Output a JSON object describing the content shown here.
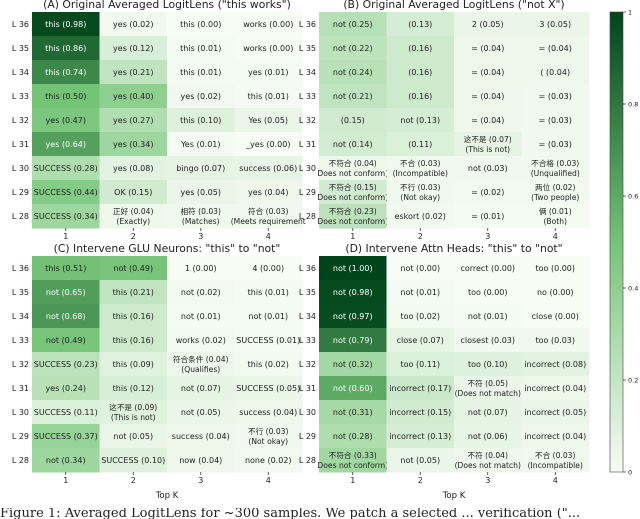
{
  "colormap": {
    "low": "#f7fcf5",
    "mid": "#74c476",
    "high": "#00441b",
    "ticks": [
      "0",
      "0.2",
      "0.4",
      "0.6",
      "0.8",
      "1"
    ],
    "range": [
      0,
      1
    ]
  },
  "caption_fragment": "Figure 1: Averaged LogitLens for ~300 samples. We patch a selected ... verification (\"...",
  "chart_data": [
    {
      "type": "heatmap",
      "title": "(A) Original Averaged LogitLens (\"this works\")",
      "xlabel": "",
      "ylabel": "",
      "x_categories": [
        "1",
        "2",
        "3",
        "4"
      ],
      "y_categories": [
        "L 36",
        "L 35",
        "L 34",
        "L 33",
        "L 32",
        "L 31",
        "L 30",
        "L 29",
        "L 28"
      ],
      "cells": [
        [
          {
            "t": [
              "this  (0.98)"
            ],
            "v": 0.98
          },
          {
            "t": [
              "yes  (0.02)"
            ],
            "v": 0.02
          },
          {
            "t": [
              "this  (0.00)"
            ],
            "v": 0.0
          },
          {
            "t": [
              "works  (0.00)"
            ],
            "v": 0.0
          }
        ],
        [
          {
            "t": [
              "this  (0.86)"
            ],
            "v": 0.86
          },
          {
            "t": [
              "yes  (0.12)"
            ],
            "v": 0.12
          },
          {
            "t": [
              "this  (0.01)"
            ],
            "v": 0.01
          },
          {
            "t": [
              "works  (0.00)"
            ],
            "v": 0.0
          }
        ],
        [
          {
            "t": [
              "this  (0.74)"
            ],
            "v": 0.74
          },
          {
            "t": [
              "yes  (0.21)"
            ],
            "v": 0.21
          },
          {
            "t": [
              "this  (0.01)"
            ],
            "v": 0.01
          },
          {
            "t": [
              "yes  (0.01)"
            ],
            "v": 0.01
          }
        ],
        [
          {
            "t": [
              "this  (0.50)"
            ],
            "v": 0.5
          },
          {
            "t": [
              "yes  (0.40)"
            ],
            "v": 0.4
          },
          {
            "t": [
              "yes  (0.02)"
            ],
            "v": 0.02
          },
          {
            "t": [
              "this  (0.01)"
            ],
            "v": 0.01
          }
        ],
        [
          {
            "t": [
              "yes  (0.47)"
            ],
            "v": 0.47
          },
          {
            "t": [
              "yes  (0.27)"
            ],
            "v": 0.27
          },
          {
            "t": [
              "this  (0.10)"
            ],
            "v": 0.1
          },
          {
            "t": [
              "Yes  (0.05)"
            ],
            "v": 0.05
          }
        ],
        [
          {
            "t": [
              "yes  (0.64)"
            ],
            "v": 0.64
          },
          {
            "t": [
              "yes  (0.34)"
            ],
            "v": 0.34
          },
          {
            "t": [
              "Yes  (0.01)"
            ],
            "v": 0.01
          },
          {
            "t": [
              "_yes  (0.00)"
            ],
            "v": 0.0
          }
        ],
        [
          {
            "t": [
              "SUCCESS  (0.28)"
            ],
            "v": 0.28
          },
          {
            "t": [
              "yes  (0.08)"
            ],
            "v": 0.08
          },
          {
            "t": [
              "bingo  (0.07)"
            ],
            "v": 0.07
          },
          {
            "t": [
              "success  (0.06)"
            ],
            "v": 0.06
          }
        ],
        [
          {
            "t": [
              "SUCCESS  (0.44)"
            ],
            "v": 0.44
          },
          {
            "t": [
              "OK  (0.15)"
            ],
            "v": 0.15
          },
          {
            "t": [
              "yes  (0.05)"
            ],
            "v": 0.05
          },
          {
            "t": [
              "yes  (0.04)"
            ],
            "v": 0.04
          }
        ],
        [
          {
            "t": [
              "SUCCESS  (0.34)"
            ],
            "v": 0.34
          },
          {
            "t": [
              "正好  (0.04)",
              "(Exactly)"
            ],
            "v": 0.04
          },
          {
            "t": [
              "相符  (0.03)",
              "(Matches)"
            ],
            "v": 0.03
          },
          {
            "t": [
              "符合  (0.03)",
              "(Meets requirement"
            ],
            "v": 0.03
          }
        ]
      ]
    },
    {
      "type": "heatmap",
      "title": "(B) Original Averaged LogitLens (\"not X\")",
      "xlabel": "",
      "ylabel": "",
      "x_categories": [
        "1",
        "2",
        "3",
        "4"
      ],
      "y_categories": [
        "L 36",
        "L 35",
        "L 34",
        "L 33",
        "L 32",
        "L 31",
        "L 30",
        "L 29",
        "L 28"
      ],
      "cells": [
        [
          {
            "t": [
              "not  (0.25)"
            ],
            "v": 0.25
          },
          {
            "t": [
              "(0.13)"
            ],
            "v": 0.13
          },
          {
            "t": [
              "2  (0.05)"
            ],
            "v": 0.05
          },
          {
            "t": [
              "3  (0.05)"
            ],
            "v": 0.05
          }
        ],
        [
          {
            "t": [
              "not  (0.22)"
            ],
            "v": 0.22
          },
          {
            "t": [
              "(0.16)"
            ],
            "v": 0.16
          },
          {
            "t": [
              "= (0.04)"
            ],
            "v": 0.04
          },
          {
            "t": [
              "= (0.04)"
            ],
            "v": 0.04
          }
        ],
        [
          {
            "t": [
              "not  (0.24)"
            ],
            "v": 0.24
          },
          {
            "t": [
              "(0.16)"
            ],
            "v": 0.16
          },
          {
            "t": [
              "= (0.04)"
            ],
            "v": 0.04
          },
          {
            "t": [
              "(  (0.04)"
            ],
            "v": 0.04
          }
        ],
        [
          {
            "t": [
              "not  (0.21)"
            ],
            "v": 0.21
          },
          {
            "t": [
              "(0.16)"
            ],
            "v": 0.16
          },
          {
            "t": [
              "= (0.04)"
            ],
            "v": 0.04
          },
          {
            "t": [
              "= (0.03)"
            ],
            "v": 0.03
          }
        ],
        [
          {
            "t": [
              "(0.15)"
            ],
            "v": 0.15
          },
          {
            "t": [
              "not  (0.13)"
            ],
            "v": 0.13
          },
          {
            "t": [
              "= (0.04)"
            ],
            "v": 0.04
          },
          {
            "t": [
              "= (0.03)"
            ],
            "v": 0.03
          }
        ],
        [
          {
            "t": [
              "not  (0.14)"
            ],
            "v": 0.14
          },
          {
            "t": [
              "(0.11)"
            ],
            "v": 0.11
          },
          {
            "t": [
              "这不是  (0.07)",
              "(This is not)"
            ],
            "v": 0.07
          },
          {
            "t": [
              "= (0.03)"
            ],
            "v": 0.03
          }
        ],
        [
          {
            "t": [
              "不符合  (0.04)",
              "Does not conform)"
            ],
            "v": 0.04
          },
          {
            "t": [
              "不合  (0.03)",
              "(Incompatible)"
            ],
            "v": 0.03
          },
          {
            "t": [
              "not  (0.03)"
            ],
            "v": 0.03
          },
          {
            "t": [
              "不合格  (0.03)",
              "(Unqualified)"
            ],
            "v": 0.03
          }
        ],
        [
          {
            "t": [
              "不符合  (0.15)",
              "Does not conform)"
            ],
            "v": 0.15
          },
          {
            "t": [
              "不行  (0.03)",
              "(Not okay)"
            ],
            "v": 0.03
          },
          {
            "t": [
              "= (0.02)"
            ],
            "v": 0.02
          },
          {
            "t": [
              "两位  (0.02)",
              "(Two people)"
            ],
            "v": 0.02
          }
        ],
        [
          {
            "t": [
              "不符合  (0.23)",
              "Does not conform)"
            ],
            "v": 0.23
          },
          {
            "t": [
              "eskort  (0.02)"
            ],
            "v": 0.02
          },
          {
            "t": [
              "= (0.01)"
            ],
            "v": 0.01
          },
          {
            "t": [
              "俩  (0.01)",
              "(Both)"
            ],
            "v": 0.01
          }
        ]
      ]
    },
    {
      "type": "heatmap",
      "title": "(C) Intervene GLU Neurons: \"this\" to \"not\"",
      "xlabel": "Top K",
      "ylabel": "",
      "x_categories": [
        "1",
        "2",
        "3",
        "4"
      ],
      "y_categories": [
        "L 36",
        "L 35",
        "L 34",
        "L 33",
        "L 32",
        "L 31",
        "L 30",
        "L 29",
        "L 28"
      ],
      "cells": [
        [
          {
            "t": [
              "this  (0.51)"
            ],
            "v": 0.51
          },
          {
            "t": [
              "not  (0.49)"
            ],
            "v": 0.49
          },
          {
            "t": [
              "1  (0.00)"
            ],
            "v": 0.0
          },
          {
            "t": [
              "4  (0.00)"
            ],
            "v": 0.0
          }
        ],
        [
          {
            "t": [
              "not  (0.65)"
            ],
            "v": 0.65
          },
          {
            "t": [
              "this  (0.21)"
            ],
            "v": 0.21
          },
          {
            "t": [
              "not  (0.02)"
            ],
            "v": 0.02
          },
          {
            "t": [
              "this  (0.01)"
            ],
            "v": 0.01
          }
        ],
        [
          {
            "t": [
              "not  (0.68)"
            ],
            "v": 0.68
          },
          {
            "t": [
              "this  (0.16)"
            ],
            "v": 0.16
          },
          {
            "t": [
              "not  (0.01)"
            ],
            "v": 0.01
          },
          {
            "t": [
              "not  (0.01)"
            ],
            "v": 0.01
          }
        ],
        [
          {
            "t": [
              "not  (0.49)"
            ],
            "v": 0.49
          },
          {
            "t": [
              "this  (0.16)"
            ],
            "v": 0.16
          },
          {
            "t": [
              "works  (0.02)"
            ],
            "v": 0.02
          },
          {
            "t": [
              "SUCCESS  (0.01)"
            ],
            "v": 0.01
          }
        ],
        [
          {
            "t": [
              "SUCCESS  (0.23)"
            ],
            "v": 0.23
          },
          {
            "t": [
              "this  (0.09)"
            ],
            "v": 0.09
          },
          {
            "t": [
              "符合条件  (0.04)",
              "(Qualifies)"
            ],
            "v": 0.04
          },
          {
            "t": [
              "this  (0.02)"
            ],
            "v": 0.02
          }
        ],
        [
          {
            "t": [
              "yes  (0.24)"
            ],
            "v": 0.24
          },
          {
            "t": [
              "this  (0.12)"
            ],
            "v": 0.12
          },
          {
            "t": [
              "not  (0.07)"
            ],
            "v": 0.07
          },
          {
            "t": [
              "SUCCESS  (0.05)"
            ],
            "v": 0.05
          }
        ],
        [
          {
            "t": [
              "SUCCESS  (0.11)"
            ],
            "v": 0.11
          },
          {
            "t": [
              "这不是  (0.09)",
              "(This is not)"
            ],
            "v": 0.09
          },
          {
            "t": [
              "not  (0.05)"
            ],
            "v": 0.05
          },
          {
            "t": [
              "success  (0.04)"
            ],
            "v": 0.04
          }
        ],
        [
          {
            "t": [
              "SUCCESS  (0.37)"
            ],
            "v": 0.37
          },
          {
            "t": [
              "not  (0.05)"
            ],
            "v": 0.05
          },
          {
            "t": [
              "success  (0.04)"
            ],
            "v": 0.04
          },
          {
            "t": [
              "不行  (0.03)",
              "(Not okay)"
            ],
            "v": 0.03
          }
        ],
        [
          {
            "t": [
              "not  (0.34)"
            ],
            "v": 0.34
          },
          {
            "t": [
              "SUCCESS  (0.10)"
            ],
            "v": 0.1
          },
          {
            "t": [
              "now  (0.04)"
            ],
            "v": 0.04
          },
          {
            "t": [
              "none  (0.02)"
            ],
            "v": 0.02
          }
        ]
      ]
    },
    {
      "type": "heatmap",
      "title": "(D) Intervene Attn Heads: \"this\" to \"not\"",
      "xlabel": "Top K",
      "ylabel": "",
      "x_categories": [
        "1",
        "2",
        "3",
        "4"
      ],
      "y_categories": [
        "L 36",
        "L 35",
        "L 34",
        "L 33",
        "L 32",
        "L 31",
        "L 30",
        "L 29",
        "L 28"
      ],
      "cells": [
        [
          {
            "t": [
              "not  (1.00)"
            ],
            "v": 1.0
          },
          {
            "t": [
              "not  (0.00)"
            ],
            "v": 0.0
          },
          {
            "t": [
              "correct  (0.00)"
            ],
            "v": 0.0
          },
          {
            "t": [
              "too  (0.00)"
            ],
            "v": 0.0
          }
        ],
        [
          {
            "t": [
              "not  (0.98)"
            ],
            "v": 0.98
          },
          {
            "t": [
              "not  (0.01)"
            ],
            "v": 0.01
          },
          {
            "t": [
              "too  (0.00)"
            ],
            "v": 0.0
          },
          {
            "t": [
              "no  (0.00)"
            ],
            "v": 0.0
          }
        ],
        [
          {
            "t": [
              "not  (0.97)"
            ],
            "v": 0.97
          },
          {
            "t": [
              "too  (0.02)"
            ],
            "v": 0.02
          },
          {
            "t": [
              "not  (0.01)"
            ],
            "v": 0.01
          },
          {
            "t": [
              "close  (0.00)"
            ],
            "v": 0.0
          }
        ],
        [
          {
            "t": [
              "not  (0.79)"
            ],
            "v": 0.79
          },
          {
            "t": [
              "close  (0.07)"
            ],
            "v": 0.07
          },
          {
            "t": [
              "closest  (0.03)"
            ],
            "v": 0.03
          },
          {
            "t": [
              "too  (0.03)"
            ],
            "v": 0.03
          }
        ],
        [
          {
            "t": [
              "not  (0.32)"
            ],
            "v": 0.32
          },
          {
            "t": [
              "too  (0.11)"
            ],
            "v": 0.11
          },
          {
            "t": [
              "too  (0.10)"
            ],
            "v": 0.1
          },
          {
            "t": [
              "incorrect  (0.08)"
            ],
            "v": 0.08
          }
        ],
        [
          {
            "t": [
              "not  (0.60)"
            ],
            "v": 0.6
          },
          {
            "t": [
              "incorrect  (0.17)"
            ],
            "v": 0.17
          },
          {
            "t": [
              "不符  (0.05)",
              "(Does not match)"
            ],
            "v": 0.05
          },
          {
            "t": [
              "incorrect  (0.04)"
            ],
            "v": 0.04
          }
        ],
        [
          {
            "t": [
              "not  (0.31)"
            ],
            "v": 0.31
          },
          {
            "t": [
              "incorrect  (0.15)"
            ],
            "v": 0.15
          },
          {
            "t": [
              "not  (0.07)"
            ],
            "v": 0.07
          },
          {
            "t": [
              "incorrect  (0.05)"
            ],
            "v": 0.05
          }
        ],
        [
          {
            "t": [
              "not  (0.28)"
            ],
            "v": 0.28
          },
          {
            "t": [
              "incorrect  (0.13)"
            ],
            "v": 0.13
          },
          {
            "t": [
              "not  (0.06)"
            ],
            "v": 0.06
          },
          {
            "t": [
              "incorrect  (0.04)"
            ],
            "v": 0.04
          }
        ],
        [
          {
            "t": [
              "不符合  (0.33)",
              "Does not conform)"
            ],
            "v": 0.33
          },
          {
            "t": [
              "not  (0.05)"
            ],
            "v": 0.05
          },
          {
            "t": [
              "不符  (0.04)",
              "(Does not match)"
            ],
            "v": 0.04
          },
          {
            "t": [
              "不合  (0.03)",
              "(Incompatible)"
            ],
            "v": 0.03
          }
        ]
      ]
    }
  ]
}
